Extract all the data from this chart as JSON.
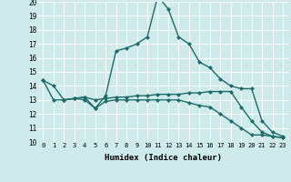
{
  "xlabel": "Humidex (Indice chaleur)",
  "xlim": [
    -0.5,
    23.5
  ],
  "ylim": [
    10,
    20
  ],
  "xticks": [
    0,
    1,
    2,
    3,
    4,
    5,
    6,
    7,
    8,
    9,
    10,
    11,
    12,
    13,
    14,
    15,
    16,
    17,
    18,
    19,
    20,
    21,
    22,
    23
  ],
  "yticks": [
    10,
    11,
    12,
    13,
    14,
    15,
    16,
    17,
    18,
    19,
    20
  ],
  "bg_color": "#ceeaea",
  "line_color": "#1e6b6b",
  "grid_color": "#ffffff",
  "line1_x": [
    0,
    1,
    2,
    3,
    4,
    5,
    6,
    7,
    8,
    9,
    10,
    11,
    12,
    13,
    14,
    15,
    16,
    17,
    18,
    19,
    20,
    21,
    22,
    23
  ],
  "line1_y": [
    14.4,
    14.0,
    13.0,
    13.1,
    13.2,
    12.4,
    13.3,
    16.5,
    16.7,
    17.0,
    17.5,
    20.4,
    19.5,
    17.5,
    17.0,
    15.7,
    15.3,
    14.5,
    14.0,
    13.8,
    13.8,
    11.5,
    10.7,
    10.4
  ],
  "line2_x": [
    0,
    1,
    2,
    3,
    4,
    5,
    6,
    7,
    8,
    9,
    10,
    11,
    12,
    13,
    14,
    15,
    16,
    17,
    18,
    19,
    20,
    21,
    22,
    23
  ],
  "line2_y": [
    14.4,
    13.0,
    13.0,
    13.1,
    13.2,
    13.0,
    13.1,
    13.2,
    13.2,
    13.3,
    13.3,
    13.4,
    13.4,
    13.4,
    13.5,
    13.5,
    13.6,
    13.6,
    13.6,
    12.5,
    11.5,
    10.7,
    10.4,
    10.3
  ],
  "line3_x": [
    2,
    3,
    4,
    5,
    6,
    7,
    8,
    9,
    10,
    11,
    12,
    13,
    14,
    15,
    16,
    17,
    18,
    19,
    20,
    21,
    22,
    23
  ],
  "line3_y": [
    13.0,
    13.1,
    13.0,
    12.4,
    12.9,
    13.0,
    13.0,
    13.0,
    13.0,
    13.0,
    13.0,
    13.0,
    12.8,
    12.6,
    12.5,
    12.0,
    11.5,
    11.0,
    10.5,
    10.5,
    10.4,
    10.3
  ]
}
